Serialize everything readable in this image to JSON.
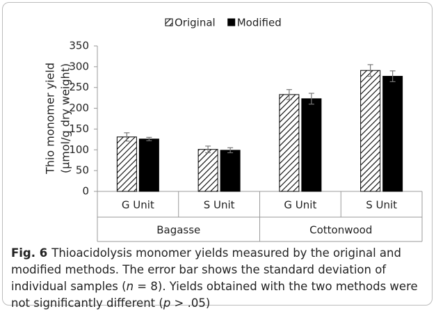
{
  "chart_data": {
    "type": "bar",
    "y_label": [
      "Thio monomer yield",
      "(μmol/g dry weight)"
    ],
    "categories": [
      "G Unit",
      "S Unit",
      "G Unit",
      "S Unit"
    ],
    "groups": [
      "Bagasse",
      "Cottonwood"
    ],
    "series": [
      {
        "name": "Original",
        "color": "#000000",
        "pattern": "hatch",
        "values": [
          131,
          101,
          233,
          291
        ],
        "errors": [
          10,
          8,
          12,
          14
        ]
      },
      {
        "name": "Modified",
        "color": "#000000",
        "pattern": "solid",
        "values": [
          126,
          99,
          223,
          277
        ],
        "errors": [
          4,
          6,
          13,
          13
        ]
      }
    ],
    "ylim": [
      0,
      350
    ],
    "yticks": [
      0,
      50,
      100,
      150,
      200,
      250,
      300,
      350
    ],
    "legend": "top"
  },
  "caption": {
    "label": "Fig. 6",
    "parts": [
      "Thioacidolysis monomer yields measured by the original and modified methods. The error bar shows the standard deviation of individual samples (",
      "n",
      " = 8). Yields obtained with the two methods were not significantly different (",
      "p",
      " > .05)"
    ]
  }
}
